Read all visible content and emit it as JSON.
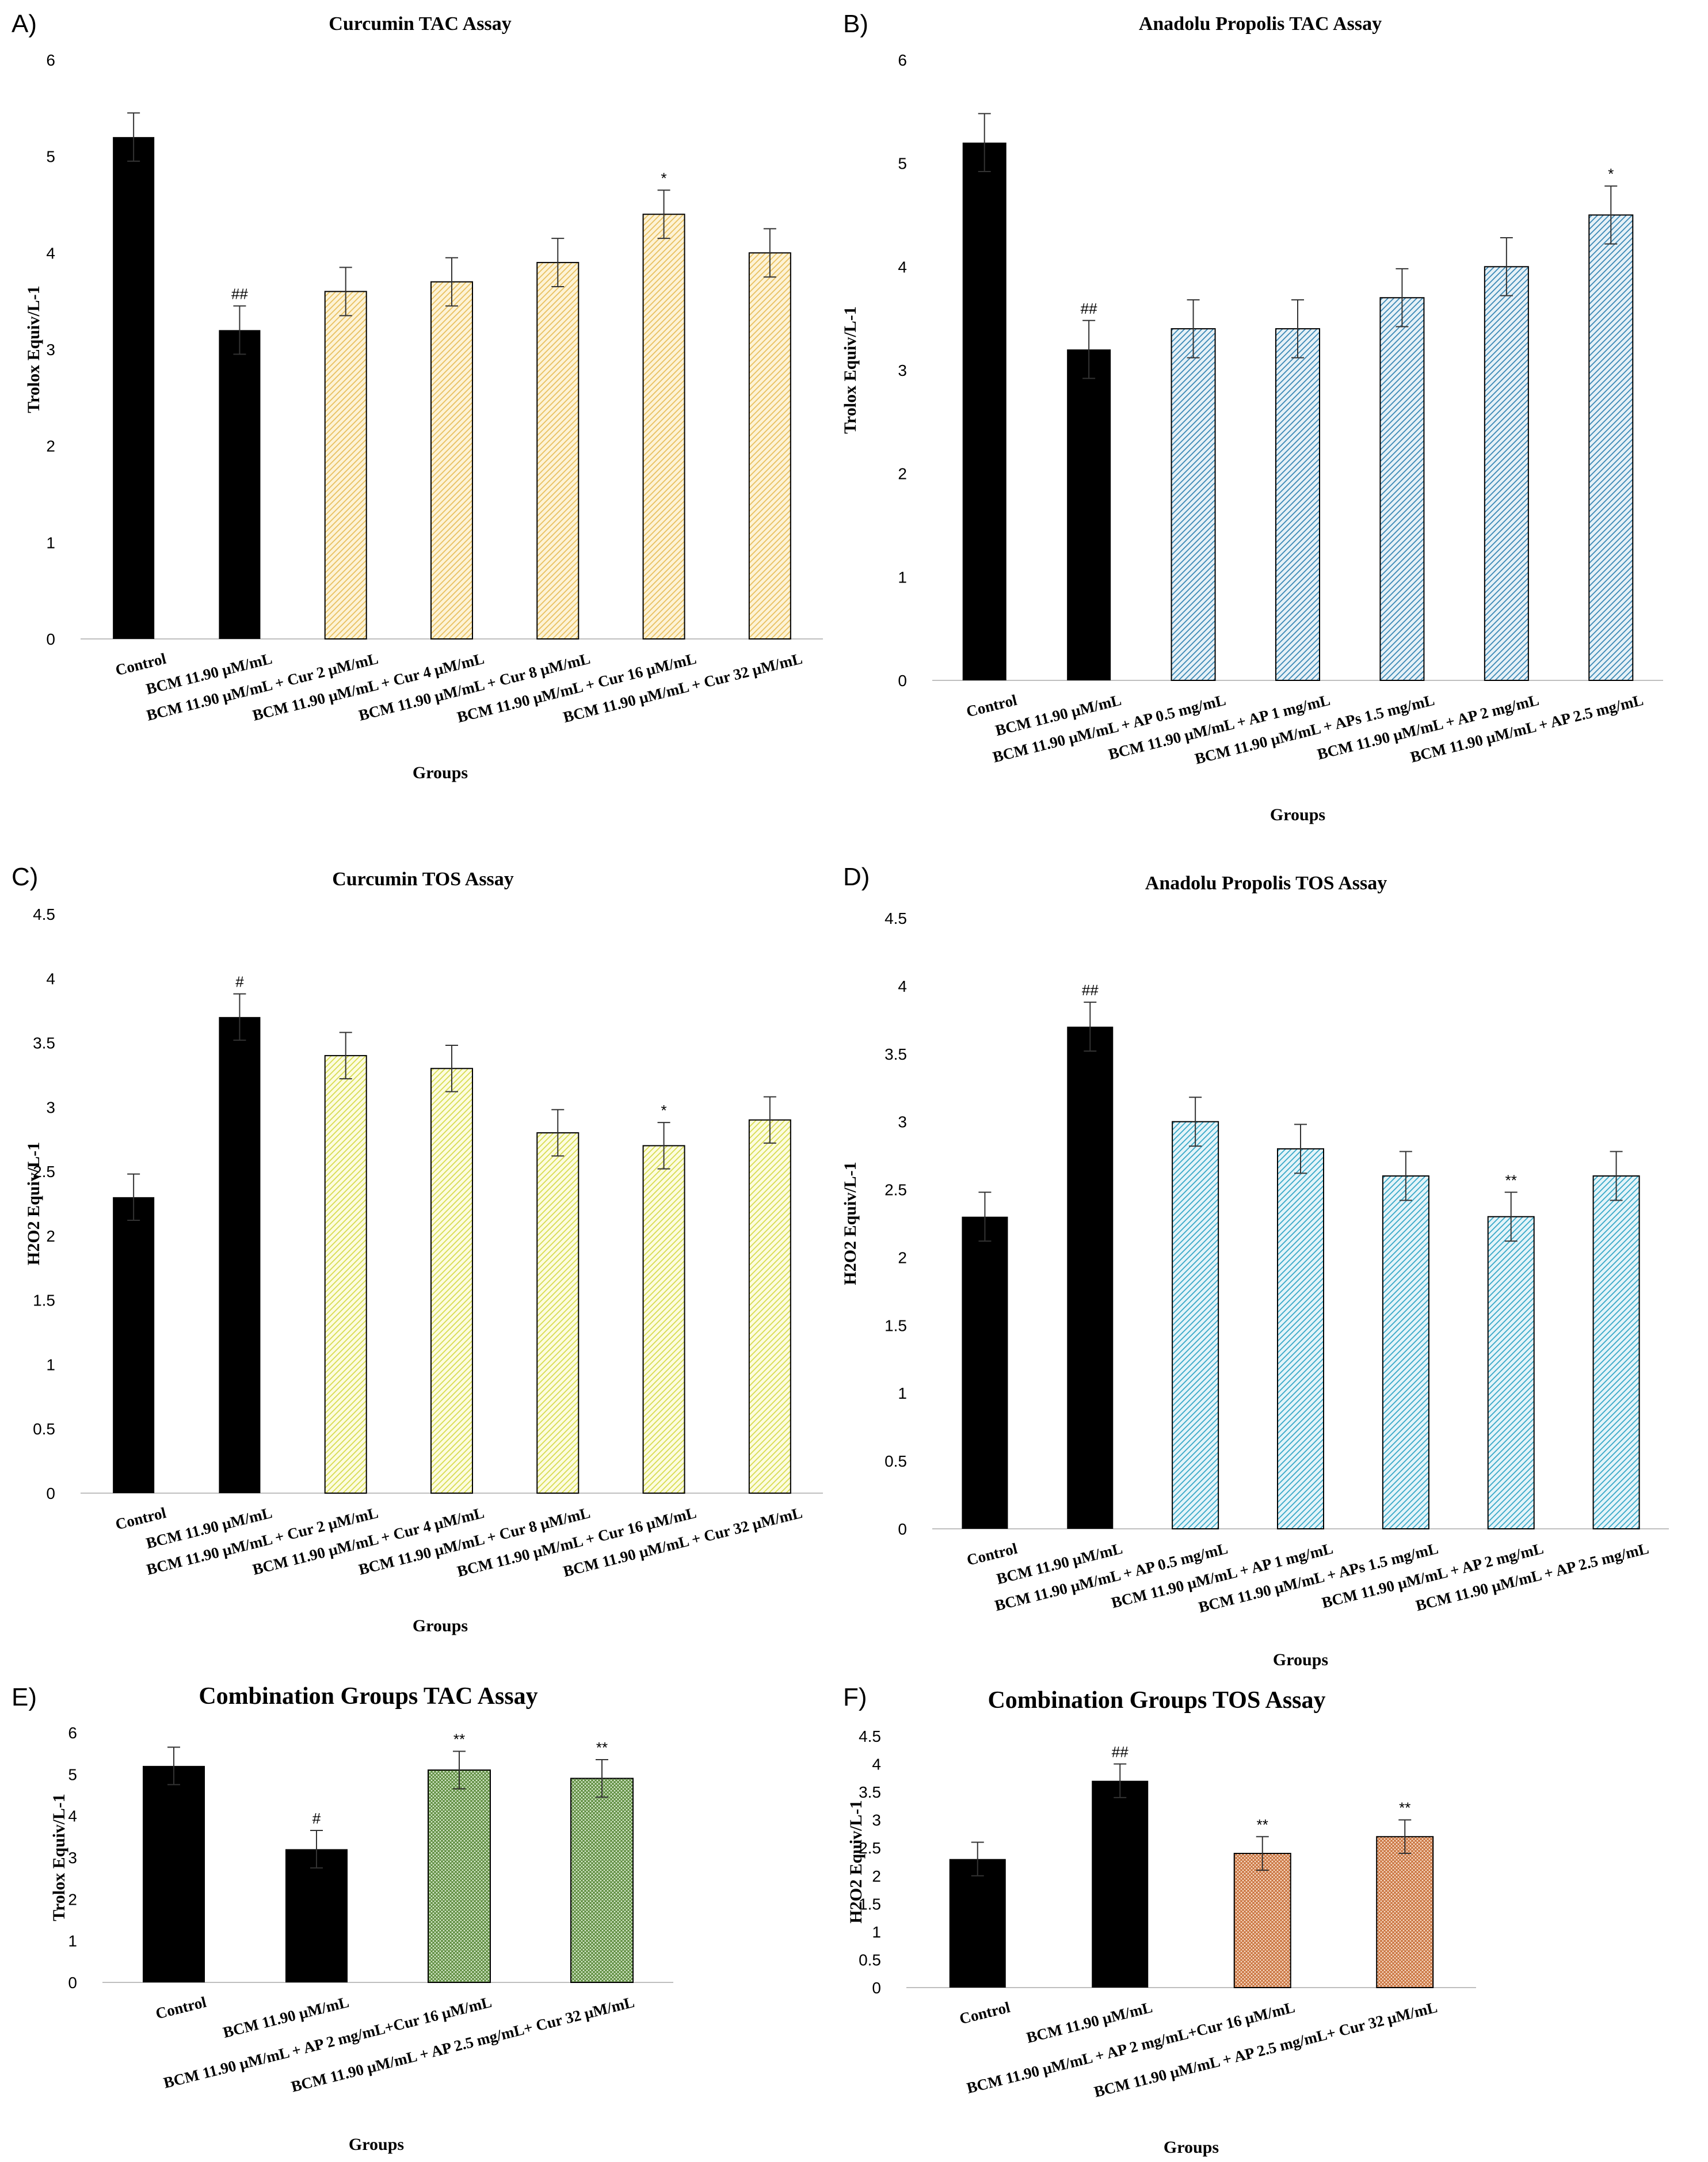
{
  "chart_data": [
    {
      "panel": "A)",
      "type": "bar",
      "title": "Curcumin TAC Assay",
      "ylabel": "Trolox Equiv/L-1",
      "xlabel": "Groups",
      "ylim": [
        0,
        6
      ],
      "yticks": [
        "0",
        "1",
        "2",
        "3",
        "4",
        "5",
        "6"
      ],
      "categories": [
        "Control",
        "BCM 11.90 μM/mL",
        "BCM 11.90 μM/mL + Cur 2 μM/mL",
        "BCM 11.90 μM/mL + Cur 4 μM/mL",
        "BCM 11.90 μM/mL + Cur 8 μM/mL",
        "BCM 11.90 μM/mL + Cur 16 μM/mL",
        "BCM 11.90 μM/mL + Cur 32 μM/mL"
      ],
      "values": [
        5.2,
        3.2,
        3.6,
        3.7,
        3.9,
        4.4,
        4.0
      ],
      "errors": [
        0.25,
        0.25,
        0.25,
        0.25,
        0.25,
        0.25,
        0.25
      ],
      "significance": [
        "",
        "##",
        "",
        "",
        "",
        "*",
        ""
      ],
      "bar_styles": [
        "solid",
        "solid",
        "hatch",
        "hatch",
        "hatch",
        "hatch",
        "hatch"
      ],
      "hatch_color": "#e8c060",
      "hatch_bg": "#fdf3d6"
    },
    {
      "panel": "B)",
      "type": "bar",
      "title": "Anadolu Propolis TAC Assay",
      "ylabel": "Trolox Equiv/L-1",
      "xlabel": "Groups",
      "ylim": [
        0,
        6
      ],
      "yticks": [
        "0",
        "1",
        "2",
        "3",
        "4",
        "5",
        "6"
      ],
      "categories": [
        "Control",
        "BCM 11.90 μM/mL",
        "BCM 11.90 μM/mL + AP 0.5 mg/mL",
        "BCM 11.90 μM/mL + AP 1 mg/mL",
        "BCM 11.90 μM/mL + APs 1.5 mg/mL",
        "BCM 11.90 μM/mL + AP 2 mg/mL",
        "BCM 11.90 μM/mL + AP 2.5 mg/mL"
      ],
      "values": [
        5.2,
        3.2,
        3.4,
        3.4,
        3.7,
        4.0,
        4.5
      ],
      "errors": [
        0.28,
        0.28,
        0.28,
        0.28,
        0.28,
        0.28,
        0.28
      ],
      "significance": [
        "",
        "##",
        "",
        "",
        "",
        "",
        "*"
      ],
      "bar_styles": [
        "solid",
        "solid",
        "hatch",
        "hatch",
        "hatch",
        "hatch",
        "hatch"
      ],
      "hatch_color": "#3b88b5",
      "hatch_bg": "#e6f1f7"
    },
    {
      "panel": "C)",
      "type": "bar",
      "title": "Curcumin TOS Assay",
      "ylabel": "H2O2 Equiv/L-1",
      "xlabel": "Groups",
      "ylim": [
        0,
        4.5
      ],
      "yticks": [
        "0",
        "0.5",
        "1",
        "1.5",
        "2",
        "2.5",
        "3",
        "3.5",
        "4",
        "4.5"
      ],
      "categories": [
        "Control",
        "BCM 11.90 μM/mL",
        "BCM 11.90 μM/mL + Cur 2 μM/mL",
        "BCM 11.90 μM/mL + Cur 4 μM/mL",
        "BCM 11.90 μM/mL + Cur 8 μM/mL",
        "BCM 11.90 μM/mL + Cur 16 μM/mL",
        "BCM 11.90 μM/mL + Cur 32 μM/mL"
      ],
      "values": [
        2.3,
        3.7,
        3.4,
        3.3,
        2.8,
        2.7,
        2.9
      ],
      "errors": [
        0.18,
        0.18,
        0.18,
        0.18,
        0.18,
        0.18,
        0.18
      ],
      "significance": [
        "",
        "#",
        "",
        "",
        "",
        "*",
        ""
      ],
      "bar_styles": [
        "solid",
        "solid",
        "hatch",
        "hatch",
        "hatch",
        "hatch",
        "hatch"
      ],
      "hatch_color": "#d8dc50",
      "hatch_bg": "#fcfce0"
    },
    {
      "panel": "D)",
      "type": "bar",
      "title": "Anadolu Propolis TOS Assay",
      "ylabel": "H2O2 Equiv/L-1",
      "xlabel": "Groups",
      "ylim": [
        0,
        4.5
      ],
      "yticks": [
        "0",
        "0.5",
        "1",
        "1.5",
        "2",
        "2.5",
        "3",
        "3.5",
        "4",
        "4.5"
      ],
      "categories": [
        "Control",
        "BCM 11.90 μM/mL",
        "BCM 11.90 μM/mL + AP 0.5 mg/mL",
        "BCM 11.90 μM/mL + AP 1 mg/mL",
        "BCM 11.90 μM/mL + APs 1.5 mg/mL",
        "BCM 11.90 μM/mL + AP 2 mg/mL",
        "BCM 11.90 μM/mL + AP 2.5 mg/mL"
      ],
      "values": [
        2.3,
        3.7,
        3.0,
        2.8,
        2.6,
        2.3,
        2.6
      ],
      "errors": [
        0.18,
        0.18,
        0.18,
        0.18,
        0.18,
        0.18,
        0.18
      ],
      "significance": [
        "",
        "##",
        "",
        "",
        "",
        "**",
        ""
      ],
      "bar_styles": [
        "solid",
        "solid",
        "hatch",
        "hatch",
        "hatch",
        "hatch",
        "hatch"
      ],
      "hatch_color": "#38a8c8",
      "hatch_bg": "#e4f4f9"
    },
    {
      "panel": "E)",
      "type": "bar",
      "title": "Combination Groups TAC Assay",
      "ylabel": "Trolox Equiv/L-1",
      "xlabel": "Groups",
      "ylim": [
        0,
        6
      ],
      "yticks": [
        "0",
        "1",
        "2",
        "3",
        "4",
        "5",
        "6"
      ],
      "categories": [
        "Control",
        "BCM 11.90 μM/mL",
        "BCM 11.90 μM/mL + AP 2 mg/mL+Cur 16 μM/mL",
        "BCM 11.90 μM/mL + AP 2.5 mg/mL+ Cur 32 μM/mL"
      ],
      "values": [
        5.2,
        3.2,
        5.1,
        4.9
      ],
      "errors": [
        0.45,
        0.45,
        0.45,
        0.45
      ],
      "significance": [
        "",
        "#",
        "**",
        "**"
      ],
      "bar_styles": [
        "solid",
        "solid",
        "grid",
        "grid"
      ],
      "hatch_color": "#5a8a3a",
      "hatch_bg": "#d9ead0"
    },
    {
      "panel": "F)",
      "type": "bar",
      "title": "Combination Groups TOS Assay",
      "ylabel": "H2O2 Equiv/L-1",
      "xlabel": "Groups",
      "ylim": [
        0,
        4.5
      ],
      "yticks": [
        "0",
        "0.5",
        "1",
        "1.5",
        "2",
        "2.5",
        "3",
        "3.5",
        "4",
        "4.5"
      ],
      "categories": [
        "Control",
        "BCM 11.90 μM/mL",
        "BCM 11.90 μM/mL + AP 2 mg/mL+Cur 16 μM/mL",
        "BCM 11.90 μM/mL + AP 2.5 mg/mL+ Cur 32 μM/mL"
      ],
      "values": [
        2.3,
        3.7,
        2.4,
        2.7
      ],
      "errors": [
        0.3,
        0.3,
        0.3,
        0.3
      ],
      "significance": [
        "",
        "##",
        "**",
        "**"
      ],
      "bar_styles": [
        "solid",
        "solid",
        "grid",
        "grid"
      ],
      "hatch_color": "#c8703a",
      "hatch_bg": "#f6dcc8"
    }
  ]
}
